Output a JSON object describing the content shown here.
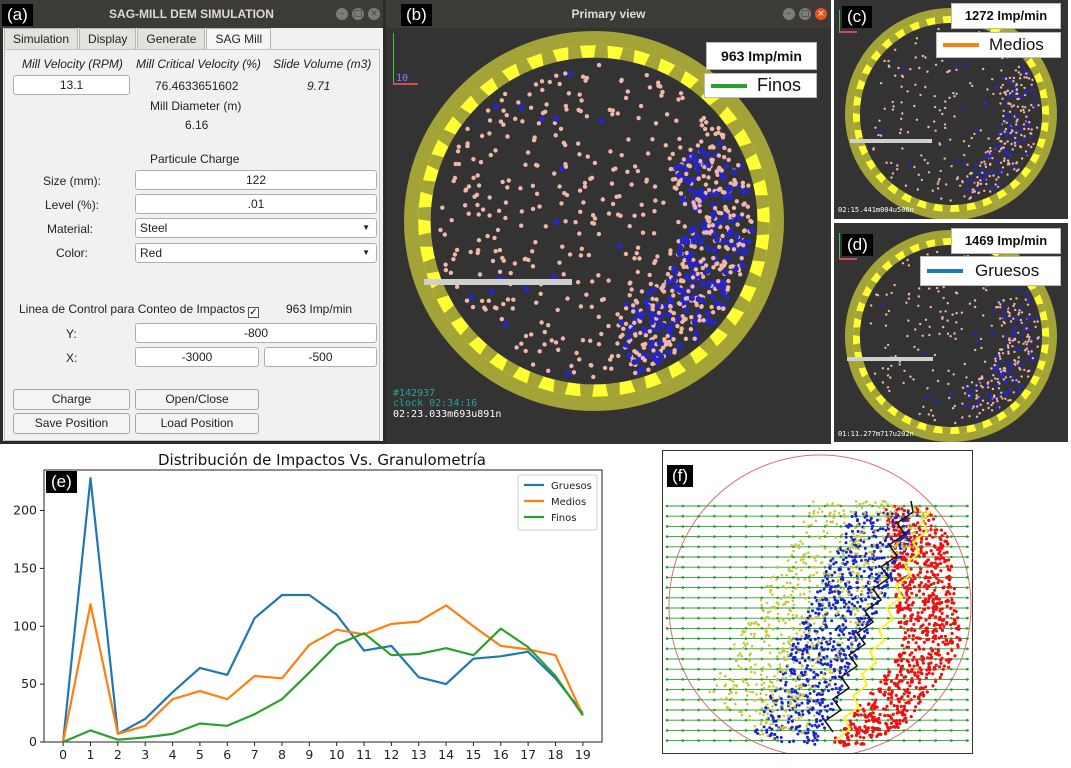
{
  "panel_labels": {
    "a": "(a)",
    "b": "(b)",
    "c": "(c)",
    "d": "(d)",
    "e": "(e)",
    "f": "(f)"
  },
  "app_window": {
    "title": "SAG-MILL DEM SIMULATION",
    "tabs": [
      "Simulation",
      "Display",
      "Generate",
      "SAG Mill"
    ],
    "active_tab": "SAG Mill",
    "mill_velocity_label": "Mill Velocity (RPM)",
    "mill_velocity_value": "13.1",
    "critical_velocity_label": "Mill Critical Velocity (%)",
    "critical_velocity_value": "76.4633651602",
    "slide_volume_label": "Slide Volume (m3)",
    "slide_volume_value": "9.71",
    "diameter_label": "Mill Diameter (m)",
    "diameter_value": "6.16",
    "charge_heading": "Particule Charge",
    "size_label": "Size (mm):",
    "size_value": "122",
    "level_label": "Level (%):",
    "level_value": ".01",
    "material_label": "Material:",
    "material_value": "Steel",
    "color_label": "Color:",
    "color_value": "Red",
    "control_line_label": "Linea de Control para Conteo de Impactos",
    "control_line_checked": true,
    "control_rate": "963 Imp/min",
    "y_label": "Y:",
    "y_value": "-800",
    "x_label": "X:",
    "x_value_1": "-3000",
    "x_value_2": "-500",
    "buttons": {
      "charge": "Charge",
      "open_close": "Open/Close",
      "save_position": "Save Position",
      "load_position": "Load Position"
    }
  },
  "primary_view": {
    "title": "Primary view",
    "rate": "963 Imp/min",
    "legend": "Finos",
    "legend_color": "#2ca02c",
    "axis_number": "10",
    "hud_line1": "#142937",
    "hud_line2": "clock 02:34:16",
    "hud_line3": "02:23.033m693u891n"
  },
  "view_c": {
    "rate": "1272 Imp/min",
    "legend": "Medios",
    "legend_color": "#ff7f0e",
    "hud": "02:15.441m004u508n"
  },
  "view_d": {
    "rate": "1469 Imp/min",
    "legend": "Gruesos",
    "legend_color": "#1f77b4",
    "hud": "01:11.277m717u202n"
  },
  "chart_data": {
    "type": "line",
    "title": "Distribución de Impactos Vs. Granulometría",
    "xlabel": "",
    "ylabel": "",
    "x": [
      0,
      1,
      2,
      3,
      4,
      5,
      6,
      7,
      8,
      9,
      10,
      11,
      12,
      13,
      14,
      15,
      16,
      17,
      18,
      19
    ],
    "xlim": [
      -0.7,
      19.7
    ],
    "ylim": [
      0,
      235
    ],
    "yticks": [
      0,
      50,
      100,
      150,
      200
    ],
    "legend_position": "top-right",
    "grid": false,
    "series": [
      {
        "name": "Gruesos",
        "color": "#1f77b4",
        "values": [
          0,
          228,
          7,
          20,
          43,
          64,
          58,
          107,
          127,
          127,
          110,
          79,
          83,
          56,
          50,
          72,
          74,
          78,
          55,
          25
        ]
      },
      {
        "name": "Medios",
        "color": "#ff7f0e",
        "values": [
          0,
          119,
          7,
          14,
          37,
          44,
          37,
          57,
          55,
          84,
          97,
          93,
          102,
          104,
          118,
          100,
          83,
          80,
          75,
          23
        ]
      },
      {
        "name": "Finos",
        "color": "#2ca02c",
        "values": [
          0,
          10,
          2,
          4,
          7,
          16,
          14,
          24,
          37,
          60,
          84,
          94,
          75,
          76,
          81,
          75,
          98,
          82,
          57,
          23
        ]
      }
    ]
  },
  "colors": {
    "mill_ring": "#a3a337",
    "lifters": "#ffff33",
    "background_dark": "#333333",
    "particle_pink": "#f0b8a8",
    "particle_blue": "#2626c8"
  }
}
